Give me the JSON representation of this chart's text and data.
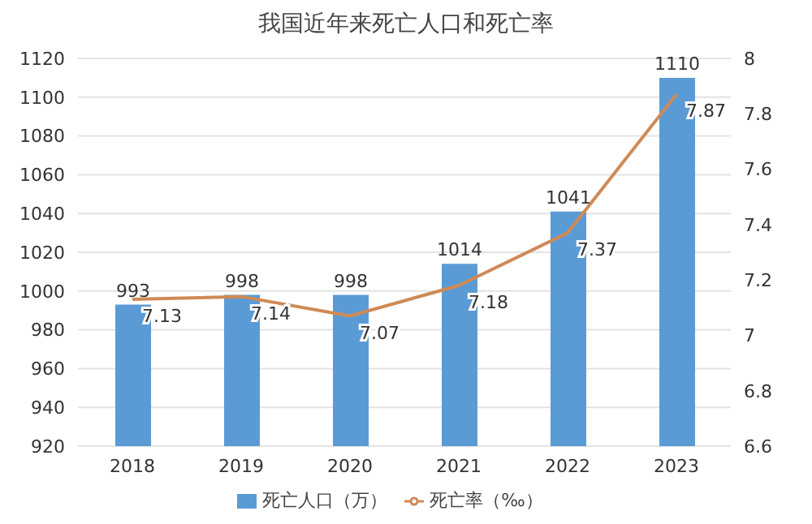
{
  "chart_data": {
    "type": "bar",
    "title": "我国近年来死亡人口和死亡率",
    "categories": [
      "2018",
      "2019",
      "2020",
      "2021",
      "2022",
      "2023"
    ],
    "series": [
      {
        "name": "死亡人口（万）",
        "color": "#5b9bd5",
        "values": [
          993,
          998,
          998,
          1014,
          1041,
          1110
        ]
      },
      {
        "name": "死亡率（‰）",
        "type": "line",
        "axis": "y2",
        "color": "#d08a55",
        "values": [
          7.13,
          7.14,
          7.07,
          7.18,
          7.37,
          7.87
        ]
      }
    ],
    "ylim": [
      920,
      1120
    ],
    "yticks": [
      920,
      940,
      960,
      980,
      1000,
      1020,
      1040,
      1060,
      1080,
      1100,
      1120
    ],
    "y2lim": [
      6.6,
      8
    ],
    "y2ticks": [
      6.6,
      6.8,
      7,
      7.2,
      7.4,
      7.6,
      7.8,
      8
    ],
    "grid": "y",
    "legend": "bottom",
    "data_labels": true,
    "marker": "none"
  }
}
